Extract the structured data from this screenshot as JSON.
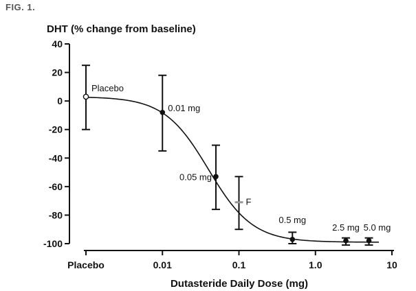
{
  "figure_label": "FIG. 1.",
  "chart_data": {
    "type": "scatter",
    "ylabel": "DHT (% change from baseline)",
    "xlabel": "Dutasteride Daily Dose (mg)",
    "ylim": [
      -100,
      40
    ],
    "yticks": [
      40,
      20,
      0,
      -20,
      -40,
      -60,
      -80,
      -100
    ],
    "x_axis_scale": "log",
    "xticks": [
      {
        "label": "Placebo",
        "dose": 0.001
      },
      {
        "label": "0.01",
        "dose": 0.01
      },
      {
        "label": "0.1",
        "dose": 0.1
      },
      {
        "label": "1.0",
        "dose": 1.0
      },
      {
        "label": "10",
        "dose": 10
      }
    ],
    "points": [
      {
        "label": "Placebo",
        "dose": 0.001,
        "y": 3,
        "ci": [
          -20,
          25
        ],
        "marker": "open"
      },
      {
        "label": "0.01 mg",
        "dose": 0.01,
        "y": -8,
        "ci": [
          -35,
          18
        ],
        "marker": "filled"
      },
      {
        "label": "0.05 mg",
        "dose": 0.05,
        "y": -53,
        "ci": [
          -76,
          -31
        ],
        "marker": "filled"
      },
      {
        "label": "F",
        "dose": 0.1,
        "y": -71,
        "ci": [
          -90,
          -53
        ],
        "marker": "dash"
      },
      {
        "label": "0.5 mg",
        "dose": 0.5,
        "y": -97,
        "ci": [
          -100,
          -92
        ],
        "marker": "filled"
      },
      {
        "label": "2.5 mg",
        "dose": 2.5,
        "y": -98,
        "ci": [
          -101,
          -96
        ],
        "marker": "filled"
      },
      {
        "label": "5.0 mg",
        "dose": 5.0,
        "y": -98,
        "ci": [
          -101,
          -96
        ],
        "marker": "filled"
      }
    ],
    "fit_curve": {
      "top": 3,
      "bottom": -99,
      "ec50": 0.04,
      "hill": 1.5
    },
    "colors": {
      "axis": "#111111",
      "curve": "#111111",
      "dash_marker": "#999999"
    }
  }
}
